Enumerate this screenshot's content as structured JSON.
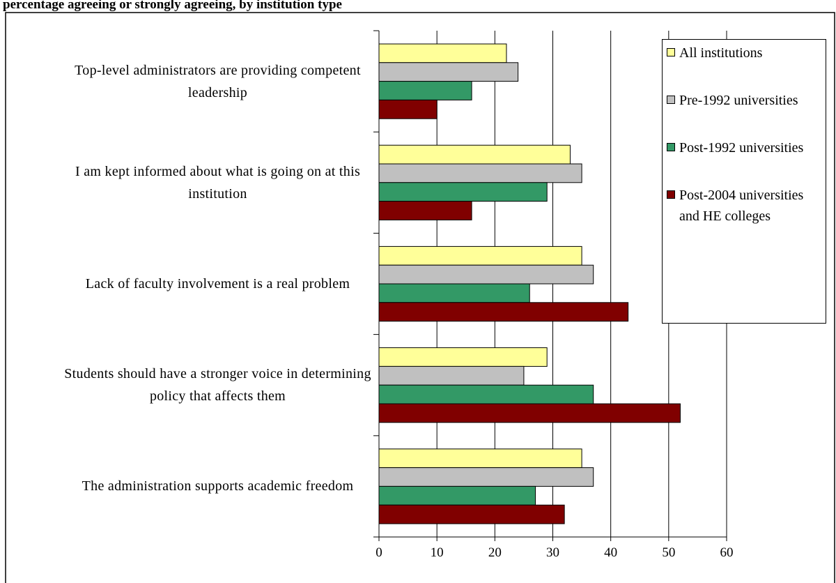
{
  "chart_data": {
    "type": "bar",
    "orientation": "horizontal",
    "title": "percentage agreeing or strongly agreeing, by institution type",
    "categories": [
      "Top-level administrators are providing competent leadership",
      "I am kept informed about what is going on at this institution",
      "Lack of faculty involvement is a real problem",
      "Students should have a stronger voice in determining policy that affects them",
      "The administration supports academic freedom"
    ],
    "series": [
      {
        "name": "All institutions",
        "color": "#ffff99",
        "values": [
          22,
          33,
          35,
          29,
          35
        ]
      },
      {
        "name": "Pre-1992 universities",
        "color": "#c0c0c0",
        "values": [
          24,
          35,
          37,
          25,
          37
        ]
      },
      {
        "name": "Post-1992 universities",
        "color": "#339966",
        "values": [
          16,
          29,
          26,
          37,
          27
        ]
      },
      {
        "name": "Post-2004 universities and HE colleges",
        "color": "#800000",
        "values": [
          10,
          16,
          43,
          52,
          32
        ]
      }
    ],
    "xlim": [
      0,
      60
    ],
    "xticks": [
      0,
      10,
      20,
      30,
      40,
      50,
      60
    ],
    "grid": true,
    "legend": "right"
  }
}
